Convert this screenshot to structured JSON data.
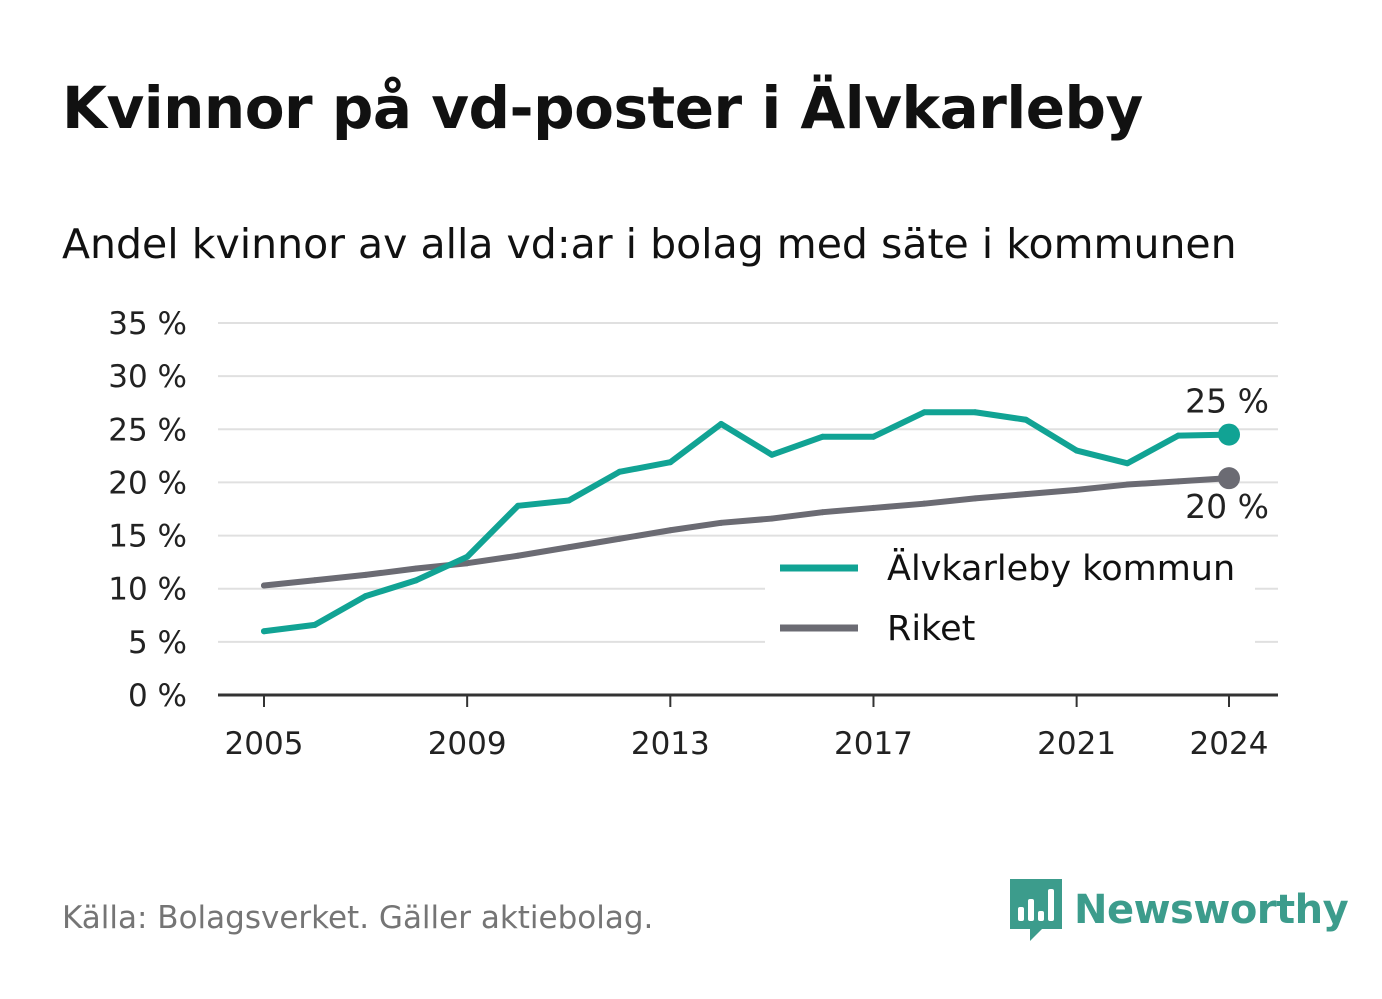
{
  "title": "Kvinnor på vd-poster i Älvkarleby",
  "subtitle": "Andel kvinnor av alla vd:ar i bolag med säte i kommunen",
  "source": "Källa: Bolagsverket. Gäller aktiebolag.",
  "brand": {
    "name": "Newsworthy",
    "icon": "newsworthy-logo-icon",
    "color": "#3c9c8c"
  },
  "chart_data": {
    "type": "line",
    "x": [
      2005,
      2006,
      2007,
      2008,
      2009,
      2010,
      2011,
      2012,
      2013,
      2014,
      2015,
      2016,
      2017,
      2018,
      2019,
      2020,
      2021,
      2022,
      2023,
      2024
    ],
    "x_ticks": [
      "2005",
      "2009",
      "2013",
      "2017",
      "2021",
      "2024"
    ],
    "y_ticks": [
      "0 %",
      "5 %",
      "10 %",
      "15 %",
      "20 %",
      "25 %",
      "30 %",
      "35 %"
    ],
    "ylim": [
      0,
      35
    ],
    "grid": true,
    "legend_position": "bottom-right",
    "series": [
      {
        "name": "Älvkarleby kommun",
        "color": "#11a394",
        "values": [
          6.0,
          6.6,
          9.3,
          10.8,
          13.0,
          17.8,
          18.3,
          21.0,
          21.9,
          25.5,
          22.6,
          24.3,
          24.3,
          26.6,
          26.6,
          25.9,
          23.0,
          21.8,
          24.4,
          24.5
        ],
        "end_label": "25 %"
      },
      {
        "name": "Riket",
        "color": "#6b6b73",
        "values": [
          10.3,
          10.8,
          11.3,
          11.9,
          12.4,
          13.1,
          13.9,
          14.7,
          15.5,
          16.2,
          16.6,
          17.2,
          17.6,
          18.0,
          18.5,
          18.9,
          19.3,
          19.8,
          20.1,
          20.4
        ],
        "end_label": "20 %"
      }
    ]
  }
}
